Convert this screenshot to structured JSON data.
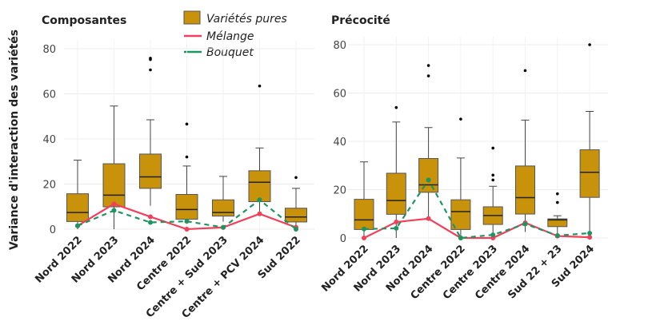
{
  "colors": {
    "box": "#C8920A",
    "box_stroke": "#444444",
    "melange": "#F0405A",
    "bouquet": "#1E9460"
  },
  "legend": {
    "placement": "top-center",
    "items": [
      "Variétés pures",
      "Mélange",
      "Bouquet"
    ]
  },
  "chart_data": [
    {
      "type": "box",
      "title": "Composantes",
      "ylabel": "Variance d'interaction des variétés",
      "ylim": [
        0,
        80
      ],
      "yticks": [
        "0",
        "20",
        "40",
        "60",
        "80"
      ],
      "grid": true,
      "categories": [
        "Nord 2022",
        "Nord 2023",
        "Nord 2024",
        "Centre 2022",
        "Centre + Sud 2023",
        "Centre + PCV 2024",
        "Sud 2022"
      ],
      "boxes": [
        {
          "low": 0,
          "q1": 3.4,
          "median": 7.4,
          "q3": 15.7,
          "high": 30.6,
          "outliers": []
        },
        {
          "low": 0,
          "q1": 9.9,
          "median": 15.1,
          "q3": 29,
          "high": 54.6,
          "outliers": []
        },
        {
          "low": 10.4,
          "q1": 18.1,
          "median": 23.2,
          "q3": 33.3,
          "high": 48.5,
          "outliers": [
            75.8,
            75.2,
            70.6
          ]
        },
        {
          "low": 4.4,
          "q1": 4.4,
          "median": 8.7,
          "q3": 15.4,
          "high": 28,
          "outliers": [
            46.6,
            32
          ]
        },
        {
          "low": 3.3,
          "q1": 5.8,
          "median": 7.4,
          "q3": 13,
          "high": 23.4,
          "outliers": []
        },
        {
          "low": 7.9,
          "q1": 12.2,
          "median": 20.8,
          "q3": 25.9,
          "high": 36,
          "outliers": [
            63.5
          ]
        },
        {
          "low": 1,
          "q1": 3.2,
          "median": 5.4,
          "q3": 9.3,
          "high": 18.1,
          "outliers": [
            22.9
          ]
        }
      ],
      "series": [
        {
          "name": "Mélange",
          "values": [
            1.5,
            11.2,
            5.5,
            0,
            0.8,
            6.8,
            0.8
          ]
        },
        {
          "name": "Bouquet",
          "values": [
            1.5,
            8.3,
            3,
            3.5,
            0.8,
            13,
            0
          ]
        }
      ]
    },
    {
      "type": "box",
      "title": "Précocité",
      "ylim": [
        0,
        80
      ],
      "yticks": [
        "0",
        "20",
        "40",
        "60",
        "80"
      ],
      "grid": true,
      "categories": [
        "Nord 2022",
        "Nord 2023",
        "Nord 2024",
        "Centre 2022",
        "Centre 2023",
        "Centre 2024",
        "Sud 22 + 23",
        "Sud 2024"
      ],
      "boxes": [
        {
          "low": 0,
          "q1": 3.5,
          "median": 7.5,
          "q3": 16,
          "high": 31.5,
          "outliers": []
        },
        {
          "low": 0,
          "q1": 9.8,
          "median": 15.5,
          "q3": 26.8,
          "high": 48,
          "outliers": [
            54
          ]
        },
        {
          "low": 8.8,
          "q1": 18.9,
          "median": 22,
          "q3": 32.9,
          "high": 45.7,
          "outliers": [
            71.4,
            67.1
          ]
        },
        {
          "low": 0,
          "q1": 3.5,
          "median": 10.9,
          "q3": 15.8,
          "high": 33.1,
          "outliers": [
            49.2
          ]
        },
        {
          "low": 0,
          "q1": 5.6,
          "median": 9.3,
          "q3": 12.9,
          "high": 21.4,
          "outliers": [
            37.2,
            26,
            24
          ]
        },
        {
          "low": 2.5,
          "q1": 9.9,
          "median": 16.7,
          "q3": 29.8,
          "high": 48.8,
          "outliers": [
            69.3
          ]
        },
        {
          "low": 0.8,
          "q1": 4.7,
          "median": 7.5,
          "q3": 7.9,
          "high": 9.2,
          "outliers": [
            18.3,
            14.7
          ]
        },
        {
          "low": 0.9,
          "q1": 16.8,
          "median": 27.2,
          "q3": 36.5,
          "high": 52.4,
          "outliers": [
            80
          ]
        }
      ],
      "series": [
        {
          "name": "Mélange",
          "values": [
            0,
            6.6,
            8,
            0,
            0,
            6.3,
            0.8,
            0.3
          ]
        },
        {
          "name": "Bouquet",
          "values": [
            3.7,
            4,
            24,
            0,
            1.3,
            5.8,
            1,
            2
          ]
        }
      ]
    }
  ]
}
